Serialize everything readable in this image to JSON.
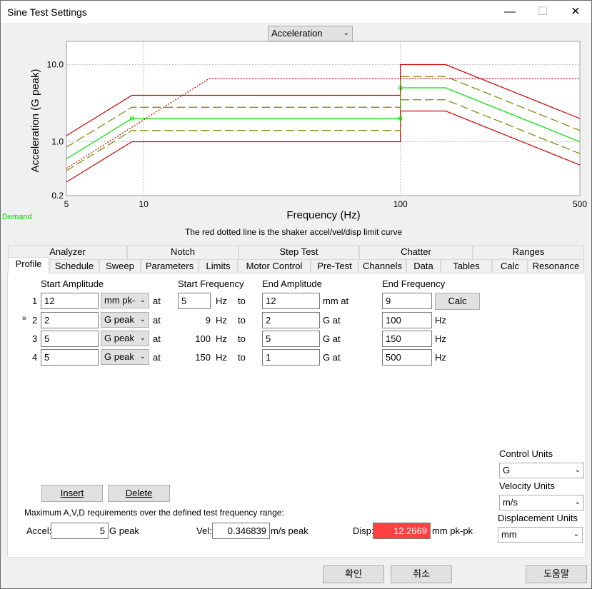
{
  "window": {
    "title": "Sine Test Settings",
    "minimize": "—",
    "maximize": "☐",
    "close": "✕"
  },
  "chart_select": {
    "value": "Acceleration"
  },
  "chart_data": {
    "type": "line",
    "ylabel": "Acceleration (G peak)",
    "xlabel": "Frequency (Hz)",
    "x_scale": "log",
    "y_scale": "log",
    "xlim": [
      5,
      500
    ],
    "ylim": [
      0.2,
      20
    ],
    "x_ticks": [
      "5",
      "10",
      "100",
      "500"
    ],
    "y_ticks": [
      "10.0",
      "1.0",
      "0.2"
    ],
    "grid": true,
    "series": [
      {
        "name": "Demand",
        "color": "#00e000",
        "x": [
          5,
          9,
          100,
          100,
          150,
          500
        ],
        "y": [
          0.6,
          2,
          2,
          5,
          5,
          1
        ]
      },
      {
        "color": "#cc0000",
        "x": [
          5,
          9,
          100,
          100,
          150,
          500
        ],
        "y": [
          1.2,
          4,
          4,
          10,
          10,
          2
        ]
      },
      {
        "color": "#cc0000",
        "x": [
          5,
          9,
          100,
          100,
          150,
          500
        ],
        "y": [
          0.3,
          1,
          1,
          2.5,
          2.5,
          0.5
        ]
      },
      {
        "color": "#808000",
        "dash": "dashed",
        "x": [
          5,
          9,
          100,
          100,
          150,
          500
        ],
        "y": [
          0.85,
          2.8,
          2.8,
          7,
          7,
          1.4
        ]
      },
      {
        "color": "#808000",
        "dash": "dashed",
        "x": [
          5,
          9,
          100,
          100,
          150,
          500
        ],
        "y": [
          0.42,
          1.4,
          1.4,
          3.5,
          3.5,
          0.7
        ]
      },
      {
        "color": "#cc0000",
        "dash": "dotted",
        "x": [
          5,
          18,
          500
        ],
        "y": [
          0.45,
          6.6,
          6.6
        ]
      }
    ]
  },
  "demand_label": "Demand",
  "caption": "The red dotted line is the shaker accel/vel/disp limit curve",
  "tabs_row1": [
    "Analyzer",
    "Notch",
    "Step Test",
    "Chatter",
    "Ranges"
  ],
  "tabs_row2": [
    "Profile",
    "Schedule",
    "Sweep",
    "Parameters",
    "Limits",
    "Motor Control",
    "Pre-Test",
    "Channels",
    "Data",
    "Tables",
    "Calc",
    "Resonance"
  ],
  "headers": {
    "start_amp": "Start Amplitude",
    "start_freq": "Start Frequency",
    "end_amp": "End Amplitude",
    "end_freq": "End Frequency"
  },
  "rows": [
    {
      "num": "1",
      "marker": "",
      "start_amp": "12",
      "unit": "mm pk-",
      "at": "at",
      "start_freq": "5",
      "hz": "Hz",
      "to": "to",
      "end_amp": "12",
      "end_unit": "mm at",
      "end_freq": "9",
      "end_hz": ""
    },
    {
      "num": "2",
      "marker": "»",
      "start_amp": "2",
      "unit": "G peak",
      "at": "at",
      "start_freq": "9",
      "hz": "Hz",
      "to": "to",
      "end_amp": "2",
      "end_unit": "G at",
      "end_freq": "100",
      "end_hz": "Hz"
    },
    {
      "num": "3",
      "marker": "",
      "start_amp": "5",
      "unit": "G peak",
      "at": "at",
      "start_freq": "100",
      "hz": "Hz",
      "to": "to",
      "end_amp": "5",
      "end_unit": "G at",
      "end_freq": "150",
      "end_hz": "Hz"
    },
    {
      "num": "4",
      "marker": "",
      "start_amp": "5",
      "unit": "G peak",
      "at": "at",
      "start_freq": "150",
      "hz": "Hz",
      "to": "to",
      "end_amp": "1",
      "end_unit": "G at",
      "end_freq": "500",
      "end_hz": "Hz"
    }
  ],
  "calc_button": "Calc",
  "insert_button": "Insert",
  "delete_button": "Delete",
  "max_label": "Maximum A,V,D requirements over the defined test frequency range:",
  "accel": {
    "label": "Accel:",
    "value": "5",
    "unit": "G peak"
  },
  "vel": {
    "label": "Vel:",
    "value": "0.346839",
    "unit": "m/s peak"
  },
  "disp": {
    "label": "Disp:",
    "value": "12.2669",
    "unit": "mm pk-pk"
  },
  "control_units": {
    "label": "Control Units",
    "value": "G"
  },
  "velocity_units": {
    "label": "Velocity Units",
    "value": "m/s"
  },
  "displacement_units": {
    "label": "Displacement Units",
    "value": "mm"
  },
  "footer": {
    "ok": "확인",
    "cancel": "취소",
    "help": "도움말"
  },
  "colors": {
    "alert": "#ff4040",
    "accent": "#0078d7"
  }
}
